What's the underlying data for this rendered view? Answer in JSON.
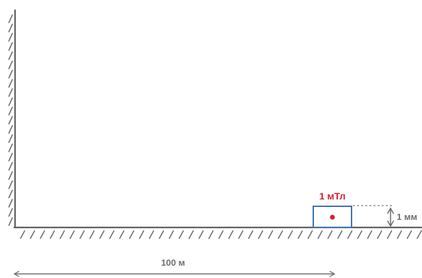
{
  "diagram": {
    "field_label": "1 мТл",
    "height_label": "1 мм",
    "distance_label": "100 м",
    "colors": {
      "wall_line": "#5f5f5f",
      "hatch": "#6e6e6e",
      "box": "#3f6fb3",
      "point": "#d6222e",
      "field_label": "#d6222e",
      "dimension": "#6f6f6f",
      "text": "#6f6f6f"
    }
  }
}
